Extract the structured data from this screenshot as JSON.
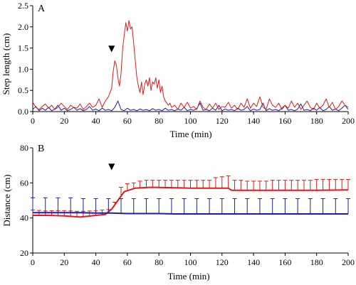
{
  "chart_data": [
    {
      "type": "line",
      "panel_label": "A",
      "xlabel": "Time (min)",
      "ylabel": "Step length (cm)",
      "xlim": [
        0,
        200
      ],
      "ylim": [
        0,
        2.5
      ],
      "x_ticks": [
        0,
        20,
        40,
        60,
        80,
        100,
        120,
        140,
        160,
        180,
        200
      ],
      "y_ticks": [
        0.0,
        0.5,
        1.0,
        1.5,
        2.0,
        2.5
      ],
      "y_tick_labels": [
        "0.0",
        "0.5",
        "1.0",
        "1.5",
        "2.0",
        "2.5"
      ],
      "grid": false,
      "marker": {
        "symbol": "▼",
        "x": 50
      },
      "series": [
        {
          "color": "#e0191b",
          "x": [
            0,
            2,
            4,
            6,
            8,
            10,
            12,
            14,
            16,
            18,
            20,
            22,
            24,
            26,
            28,
            30,
            32,
            34,
            36,
            38,
            40,
            42,
            44,
            46,
            48,
            50,
            51,
            52,
            53,
            54,
            55,
            56,
            57,
            58,
            59,
            60,
            61,
            62,
            63,
            64,
            65,
            66,
            67,
            68,
            69,
            70,
            71,
            72,
            73,
            74,
            75,
            76,
            77,
            78,
            79,
            80,
            81,
            82,
            83,
            84,
            85,
            86,
            87,
            88,
            90,
            92,
            94,
            96,
            98,
            100,
            102,
            104,
            106,
            108,
            110,
            112,
            114,
            116,
            118,
            120,
            122,
            124,
            126,
            128,
            130,
            132,
            134,
            136,
            138,
            140,
            142,
            144,
            146,
            148,
            150,
            152,
            154,
            156,
            158,
            160,
            162,
            164,
            166,
            168,
            170,
            172,
            174,
            176,
            178,
            180,
            182,
            184,
            186,
            188,
            190,
            192,
            194,
            196,
            198,
            200
          ],
          "values": [
            0.22,
            0.1,
            0.05,
            0.12,
            0.18,
            0.08,
            0.15,
            0.05,
            0.1,
            0.2,
            0.12,
            0.05,
            0.15,
            0.1,
            0.08,
            0.18,
            0.05,
            0.12,
            0.2,
            0.1,
            0.15,
            0.3,
            0.1,
            0.25,
            0.35,
            0.55,
            0.95,
            1.2,
            1.1,
            0.8,
            0.6,
            0.9,
            1.5,
            1.8,
            2.1,
            1.9,
            2.15,
            1.95,
            2.0,
            1.6,
            1.2,
            0.8,
            0.6,
            0.45,
            0.7,
            0.4,
            0.65,
            0.75,
            0.6,
            0.8,
            0.5,
            0.7,
            0.65,
            0.8,
            0.55,
            0.75,
            0.45,
            0.6,
            0.35,
            0.25,
            0.2,
            0.15,
            0.2,
            0.1,
            0.15,
            0.05,
            0.2,
            0.1,
            0.22,
            0.08,
            0.12,
            0.05,
            0.25,
            0.1,
            0.05,
            0.18,
            0.08,
            0.2,
            0.05,
            0.12,
            0.1,
            0.22,
            0.08,
            0.15,
            0.05,
            0.2,
            0.1,
            0.3,
            0.08,
            0.2,
            0.12,
            0.35,
            0.1,
            0.05,
            0.3,
            0.15,
            0.1,
            0.2,
            0.05,
            0.15,
            0.08,
            0.25,
            0.1,
            0.2,
            0.05,
            0.15,
            0.25,
            0.1,
            0.05,
            0.2,
            0.08,
            0.15,
            0.3,
            0.1,
            0.22,
            0.05,
            0.12,
            0.25,
            0.15,
            0.1
          ]
        },
        {
          "color": "#1f1f9e",
          "x": [
            0,
            2,
            4,
            6,
            8,
            10,
            12,
            14,
            16,
            18,
            20,
            22,
            24,
            26,
            28,
            30,
            32,
            34,
            36,
            38,
            40,
            42,
            44,
            46,
            48,
            50,
            52,
            54,
            56,
            58,
            60,
            62,
            64,
            66,
            68,
            70,
            72,
            74,
            76,
            78,
            80,
            82,
            84,
            86,
            88,
            90,
            92,
            94,
            96,
            98,
            100,
            102,
            104,
            106,
            108,
            110,
            112,
            114,
            116,
            118,
            120,
            122,
            124,
            126,
            128,
            130,
            132,
            134,
            136,
            138,
            140,
            142,
            144,
            146,
            148,
            150,
            152,
            154,
            156,
            158,
            160,
            162,
            164,
            166,
            168,
            170,
            172,
            174,
            176,
            178,
            180,
            182,
            184,
            186,
            188,
            190,
            192,
            194,
            196,
            198,
            200
          ],
          "values": [
            0.05,
            0.12,
            0.02,
            0.08,
            0.03,
            0.1,
            0.02,
            0.06,
            0.15,
            0.03,
            0.08,
            0.02,
            0.05,
            0.1,
            0.03,
            0.07,
            0.02,
            0.05,
            0.12,
            0.03,
            0.06,
            0.02,
            0.08,
            0.03,
            0.05,
            0.02,
            0.1,
            0.25,
            0.05,
            0.02,
            0.08,
            0.03,
            0.05,
            0.02,
            0.06,
            0.03,
            0.05,
            0.02,
            0.07,
            0.03,
            0.05,
            0.02,
            0.08,
            0.03,
            0.05,
            0.02,
            0.06,
            0.03,
            0.1,
            0.02,
            0.05,
            0.03,
            0.07,
            0.2,
            0.03,
            0.05,
            0.02,
            0.08,
            0.03,
            0.15,
            0.02,
            0.06,
            0.03,
            0.05,
            0.02,
            0.08,
            0.03,
            0.05,
            0.12,
            0.02,
            0.06,
            0.03,
            0.05,
            0.2,
            0.02,
            0.07,
            0.03,
            0.05,
            0.02,
            0.08,
            0.15,
            0.03,
            0.05,
            0.02,
            0.06,
            0.18,
            0.03,
            0.05,
            0.02,
            0.08,
            0.03,
            0.1,
            0.02,
            0.05,
            0.12,
            0.03,
            0.06,
            0.02,
            0.08,
            0.15,
            0.05
          ]
        }
      ]
    },
    {
      "type": "line",
      "panel_label": "B",
      "xlabel": "Time (min)",
      "ylabel": "Distance (cm)",
      "xlim": [
        0,
        200
      ],
      "ylim": [
        20,
        80
      ],
      "x_ticks": [
        0,
        20,
        40,
        60,
        80,
        100,
        120,
        140,
        160,
        180,
        200
      ],
      "y_ticks": [
        20,
        40,
        60,
        80
      ],
      "y_tick_labels": [
        "20",
        "40",
        "60",
        "80"
      ],
      "grid": false,
      "marker": {
        "symbol": "▼",
        "x": 50
      },
      "series": [
        {
          "color": "#e0191b",
          "x": [
            0,
            10,
            20,
            30,
            40,
            46,
            50,
            54,
            58,
            65,
            75,
            85,
            100,
            115,
            124,
            126,
            130,
            140,
            160,
            180,
            200
          ],
          "values": [
            41.5,
            41.5,
            41.2,
            40.5,
            41.5,
            42.0,
            45.0,
            50.0,
            55.0,
            57.0,
            57.5,
            57.3,
            57.0,
            57.0,
            57.0,
            55.8,
            55.8,
            55.8,
            55.8,
            55.8,
            56.0
          ],
          "error_x": [
            0,
            4,
            8,
            12,
            16,
            20,
            24,
            28,
            32,
            36,
            40,
            44,
            48,
            52,
            56,
            60,
            64,
            68,
            72,
            76,
            80,
            84,
            88,
            92,
            96,
            100,
            104,
            108,
            112,
            116,
            120,
            124,
            128,
            132,
            136,
            140,
            144,
            148,
            152,
            156,
            160,
            164,
            168,
            172,
            176,
            180,
            184,
            188,
            192,
            196,
            200
          ],
          "error_upper": [
            44.5,
            44.3,
            44.0,
            44.1,
            44.2,
            44.2,
            44.0,
            43.8,
            43.8,
            44.0,
            44.2,
            44.5,
            44.8,
            49.0,
            57.5,
            59.5,
            60.0,
            61.0,
            61.5,
            61.5,
            61.5,
            61.5,
            61.5,
            61.5,
            61.5,
            61.5,
            61.5,
            61.5,
            61.5,
            63.0,
            63.5,
            64.0,
            61.5,
            61.5,
            61.0,
            61.0,
            61.0,
            61.0,
            61.5,
            61.5,
            61.5,
            61.5,
            61.5,
            61.5,
            61.5,
            62.0,
            62.0,
            62.0,
            62.0,
            62.0,
            62.0
          ]
        },
        {
          "color": "#1f1f9e",
          "x": [
            0,
            10,
            20,
            30,
            40,
            50,
            60,
            70,
            80,
            90,
            100,
            110,
            120,
            130,
            140,
            150,
            160,
            170,
            180,
            190,
            200
          ],
          "values": [
            43.0,
            43.0,
            43.0,
            43.0,
            42.8,
            42.8,
            42.5,
            42.5,
            42.5,
            42.3,
            42.3,
            42.3,
            42.3,
            42.3,
            42.3,
            42.3,
            42.3,
            42.3,
            42.3,
            42.3,
            42.3
          ],
          "error_x": [
            0,
            8,
            16,
            24,
            32,
            40,
            48,
            56,
            64,
            72,
            80,
            88,
            96,
            104,
            112,
            120,
            128,
            136,
            144,
            152,
            160,
            168,
            176,
            184,
            192,
            200
          ],
          "error_upper": [
            51.5,
            51.5,
            51.5,
            51.5,
            51.0,
            51.0,
            51.0,
            51.0,
            51.0,
            51.0,
            51.0,
            51.0,
            51.0,
            51.0,
            51.0,
            51.0,
            51.0,
            51.0,
            51.0,
            51.0,
            51.0,
            51.0,
            51.0,
            51.0,
            51.0,
            51.0
          ]
        }
      ]
    }
  ]
}
